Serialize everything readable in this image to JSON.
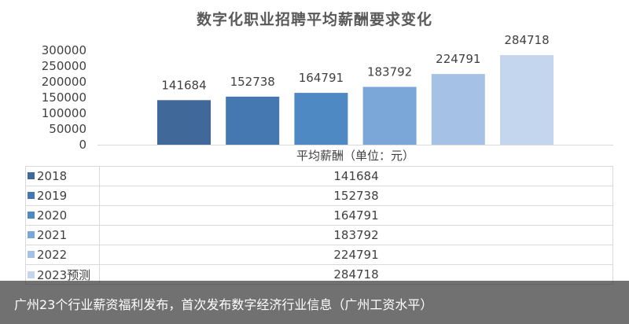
{
  "chart_data": {
    "type": "bar",
    "title": "数字化职业招聘平均薪酬要求变化",
    "series_name": "平均薪酬（单位：元）",
    "categories": [
      "2018",
      "2019",
      "2020",
      "2021",
      "2022",
      "2023预测"
    ],
    "values": [
      141684,
      152738,
      164791,
      183792,
      224791,
      284718
    ],
    "colors": [
      "#40699a",
      "#4577b0",
      "#4f89c4",
      "#7aa6d8",
      "#a5c2e6",
      "#c3d6ee"
    ],
    "ylim": [
      0,
      300000
    ],
    "yticks": [
      "0",
      "50000",
      "100000",
      "150000",
      "200000",
      "250000",
      "300000"
    ],
    "grid": false,
    "legend": "data-table"
  },
  "caption": "广州23个行业薪资福利发布，首次发布数字经济行业信息（广州工资水平）"
}
